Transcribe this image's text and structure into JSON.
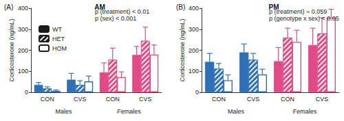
{
  "chart_data": [
    {
      "type": "bar",
      "panel": "(A)",
      "title": "AM",
      "annotations": [
        "p (treatment) < 0.01",
        "p (sex) < 0.001"
      ],
      "y_label": "Corticosterone (ng/mL)",
      "categories": [
        "CON",
        "CVS",
        "CON",
        "CVS"
      ],
      "category_groups": [
        "Males",
        "Males",
        "Females",
        "Females"
      ],
      "ylim": [
        0,
        400
      ],
      "yticks": [
        0,
        100,
        200,
        300,
        400
      ],
      "grid": false,
      "legend": "upper left",
      "series": [
        {
          "name": "WT",
          "color": "#1a1a1a",
          "marker": "solid",
          "colors": [
            "#2f6fb5",
            "#2f6fb5",
            "#e04a86",
            "#e04a86"
          ],
          "values": [
            35,
            60,
            95,
            178
          ],
          "errors": [
            12,
            30,
            45,
            40
          ]
        },
        {
          "name": "HET",
          "color": "#1a1a1a",
          "marker": "hatched",
          "colors": [
            "#2f6fb5",
            "#2f6fb5",
            "#e04a86",
            "#e04a86"
          ],
          "values": [
            18,
            35,
            155,
            245
          ],
          "errors": [
            8,
            20,
            55,
            65
          ]
        },
        {
          "name": "HOM",
          "color": "#ffffff",
          "marker": "open",
          "colors": [
            "#2f6fb5",
            "#2f6fb5",
            "#e04a86",
            "#e04a86"
          ],
          "values": [
            7,
            52,
            72,
            180
          ],
          "errors": [
            4,
            25,
            25,
            45
          ]
        }
      ]
    },
    {
      "type": "bar",
      "panel": "(B)",
      "title": "PM",
      "annotations": [
        "p (treatment) = 0.059",
        "p (genotype x sex) < 0.05"
      ],
      "y_label": "Corticosterone (ng/mL)",
      "categories": [
        "CON",
        "CVS",
        "CON",
        "CVS"
      ],
      "category_groups": [
        "Males",
        "Males",
        "Females",
        "Females"
      ],
      "ylim": [
        0,
        400
      ],
      "yticks": [
        0,
        100,
        200,
        300,
        400
      ],
      "grid": false,
      "series": [
        {
          "name": "WT",
          "color": "#1a1a1a",
          "marker": "solid",
          "colors": [
            "#2f6fb5",
            "#2f6fb5",
            "#e04a86",
            "#e04a86"
          ],
          "values": [
            145,
            190,
            148,
            225
          ],
          "errors": [
            40,
            40,
            65,
            80
          ]
        },
        {
          "name": "HET",
          "color": "#1a1a1a",
          "marker": "hatched",
          "colors": [
            "#2f6fb5",
            "#2f6fb5",
            "#e04a86",
            "#e04a86"
          ],
          "values": [
            112,
            155,
            260,
            280
          ],
          "errors": [
            25,
            30,
            45,
            75
          ]
        },
        {
          "name": "HOM",
          "color": "#ffffff",
          "marker": "open",
          "colors": [
            "#2f6fb5",
            "#2f6fb5",
            "#e04a86",
            "#e04a86"
          ],
          "values": [
            58,
            85,
            240,
            355
          ],
          "errors": [
            25,
            25,
            55,
            40
          ]
        }
      ]
    }
  ]
}
